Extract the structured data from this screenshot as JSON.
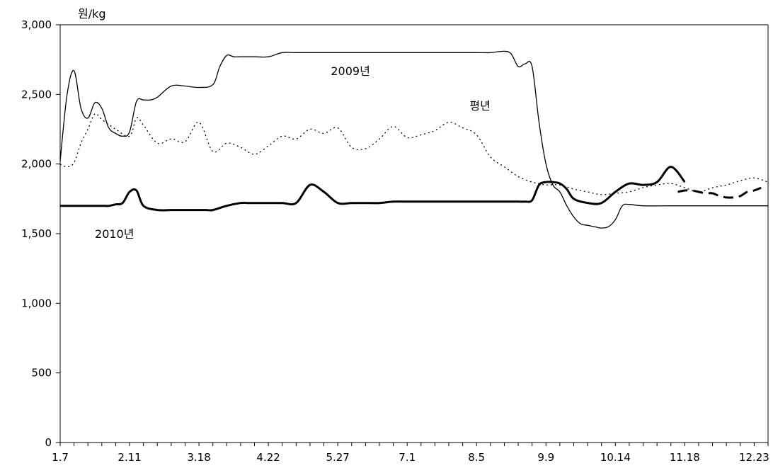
{
  "chart_data": {
    "type": "line",
    "title": "",
    "xlabel": "",
    "ylabel": "원/kg",
    "ylim": [
      0,
      3000
    ],
    "yticks": [
      0,
      500,
      1000,
      1500,
      2000,
      2500,
      3000
    ],
    "ytick_labels": [
      "0",
      "500",
      "1,000",
      "1,500",
      "2,000",
      "2,500",
      "3,000"
    ],
    "xlim": [
      0,
      51
    ],
    "x_tick_labels": [
      "1.7",
      "2.11",
      "3.18",
      "4.22",
      "5.27",
      "7.1",
      "8.5",
      "9.9",
      "10.14",
      "11.18",
      "12.23"
    ],
    "x_tick_positions": [
      0,
      5,
      10,
      15,
      20,
      25,
      30,
      35,
      40,
      45,
      50
    ],
    "grid": false,
    "legend": "none",
    "annotations": [
      {
        "text": "2009년",
        "x": 19.5,
        "y": 2640
      },
      {
        "text": "평년",
        "x": 29.5,
        "y": 2390
      },
      {
        "text": "2010년",
        "x": 2.5,
        "y": 1470
      }
    ],
    "series": [
      {
        "style": "solid-thin",
        "x": [
          0,
          0.5,
          1,
          1.5,
          2,
          2.5,
          3,
          3.5,
          4,
          4.5,
          5,
          5.5,
          6,
          6.5,
          7,
          8,
          9,
          10,
          11,
          11.5,
          12,
          12.5,
          13,
          14,
          15,
          16,
          17,
          18,
          19,
          20,
          21,
          22,
          23,
          24,
          25,
          26,
          27,
          28,
          29,
          30,
          31,
          32,
          32.5,
          33,
          33.5,
          34,
          34.5,
          35,
          35.5,
          36,
          36.5,
          37,
          37.5,
          38,
          38.5,
          39,
          39.5,
          40,
          40.5,
          41,
          42,
          44,
          46,
          48,
          50,
          51
        ],
        "values": [
          2020,
          2500,
          2670,
          2400,
          2330,
          2440,
          2400,
          2260,
          2220,
          2200,
          2230,
          2450,
          2460,
          2460,
          2480,
          2560,
          2560,
          2550,
          2570,
          2700,
          2780,
          2770,
          2770,
          2770,
          2770,
          2800,
          2800,
          2800,
          2800,
          2800,
          2800,
          2800,
          2800,
          2800,
          2800,
          2800,
          2800,
          2800,
          2800,
          2800,
          2800,
          2810,
          2790,
          2700,
          2720,
          2700,
          2300,
          2000,
          1850,
          1800,
          1700,
          1620,
          1570,
          1560,
          1550,
          1540,
          1550,
          1600,
          1700,
          1710,
          1700,
          1700,
          1700,
          1700,
          1700,
          1700
        ]
      },
      {
        "style": "dotted",
        "x": [
          0,
          0.5,
          1,
          1.5,
          2,
          2.5,
          3,
          4,
          5,
          5.5,
          6,
          7,
          8,
          9,
          10,
          11,
          12,
          13,
          14,
          15,
          16,
          17,
          18,
          19,
          20,
          21,
          22,
          23,
          24,
          25,
          26,
          27,
          28,
          29,
          30,
          31,
          32,
          33,
          34,
          34.5,
          35,
          36,
          37,
          38,
          39,
          40,
          41,
          42,
          43,
          44,
          45,
          46,
          47,
          48,
          49,
          50,
          51
        ],
        "values": [
          2000,
          1980,
          2010,
          2150,
          2250,
          2360,
          2320,
          2250,
          2200,
          2330,
          2280,
          2150,
          2180,
          2160,
          2300,
          2090,
          2150,
          2120,
          2070,
          2130,
          2200,
          2180,
          2250,
          2220,
          2260,
          2120,
          2110,
          2180,
          2270,
          2190,
          2210,
          2240,
          2300,
          2260,
          2210,
          2050,
          1980,
          1910,
          1870,
          1860,
          1850,
          1850,
          1820,
          1800,
          1780,
          1790,
          1800,
          1830,
          1850,
          1860,
          1830,
          1800,
          1830,
          1850,
          1880,
          1900,
          1870
        ]
      },
      {
        "style": "solid-thick",
        "x": [
          0,
          1,
          2,
          3,
          3.5,
          4,
          4.5,
          5,
          5.5,
          6,
          7,
          8,
          9,
          10,
          10.5,
          11,
          12,
          13,
          13.5,
          14,
          14.5,
          15,
          16,
          17,
          18,
          19,
          20,
          21,
          22,
          23,
          24,
          25,
          25.5,
          26,
          26.5,
          27,
          27.5,
          28,
          28.5,
          29,
          29.5,
          30,
          30.5,
          31,
          31.5,
          32,
          32.5,
          33,
          33.5,
          34,
          34.5,
          35,
          35.5,
          36,
          36.5,
          37,
          38,
          39,
          40,
          41,
          42,
          43,
          44,
          45
        ],
        "values": [
          1700,
          1700,
          1700,
          1700,
          1700,
          1710,
          1720,
          1800,
          1810,
          1700,
          1670,
          1670,
          1670,
          1670,
          1670,
          1670,
          1700,
          1720,
          1720,
          1720,
          1720,
          1720,
          1720,
          1720,
          1850,
          1800,
          1720,
          1720,
          1720,
          1720,
          1730,
          1730,
          1730,
          1730,
          1730,
          1730,
          1730,
          1730,
          1730,
          1730,
          1730,
          1730,
          1730,
          1730,
          1730,
          1730,
          1730,
          1730,
          1730,
          1740,
          1850,
          1870,
          1870,
          1860,
          1820,
          1750,
          1720,
          1720,
          1800,
          1860,
          1850,
          1870,
          1980,
          1870
        ]
      },
      {
        "style": "dashed-thick",
        "x": [
          44.5,
          45,
          45.5,
          46,
          46.5,
          47,
          47.5,
          48,
          48.5,
          49,
          49.5,
          50,
          50.5
        ],
        "values": [
          1800,
          1810,
          1810,
          1800,
          1790,
          1790,
          1770,
          1760,
          1760,
          1770,
          1800,
          1810,
          1830
        ]
      }
    ]
  }
}
